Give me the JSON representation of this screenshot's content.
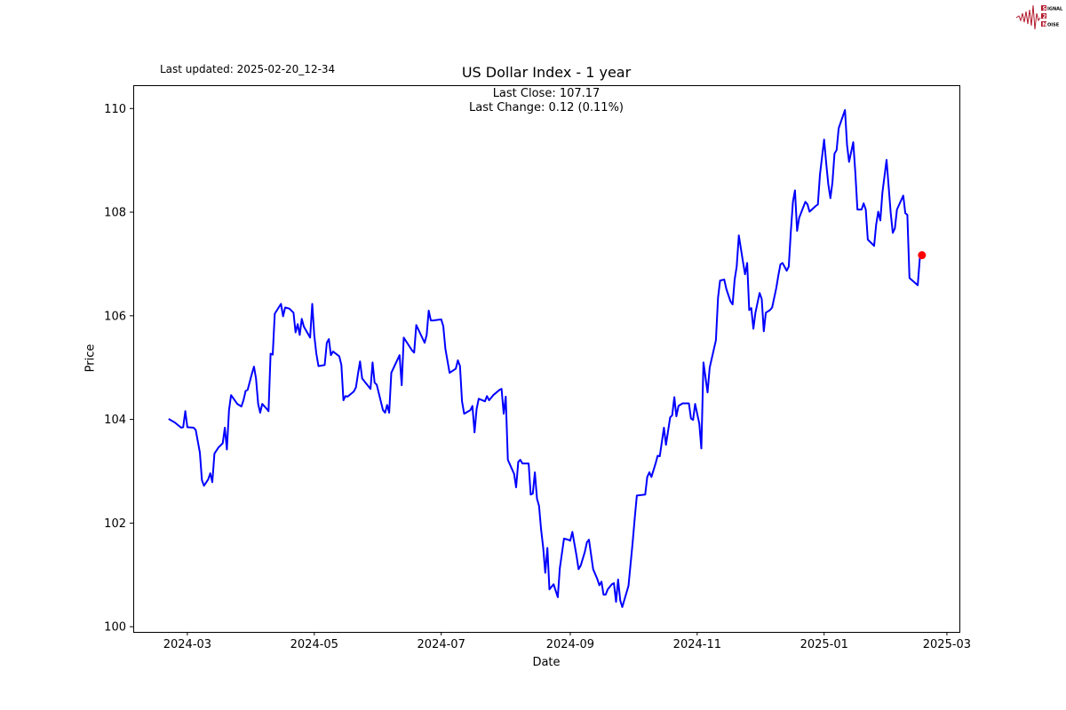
{
  "header": {
    "last_updated": "Last updated: 2025-02-20_12-34"
  },
  "logo": {
    "text": "SIGNAL 2 NOISE",
    "color": "#b2182b"
  },
  "chart_data": {
    "type": "line",
    "title": "US Dollar Index - 1 year",
    "annotation": {
      "last_close": "Last Close: 107.17",
      "last_change": "Last Change: 0.12 (0.11%)"
    },
    "xlabel": "Date",
    "ylabel": "Price",
    "xlim": [
      "2024-02-04",
      "2025-03-07"
    ],
    "ylim": [
      99.9,
      110.45
    ],
    "xticks": [
      "2024-03",
      "2024-05",
      "2024-07",
      "2024-09",
      "2024-11",
      "2025-01",
      "2025-03"
    ],
    "yticks": [
      100,
      102,
      104,
      106,
      108,
      110
    ],
    "grid": false,
    "line_color": "#0000ff",
    "marker_color": "#ff0000",
    "last_point": {
      "date": "2025-02-17",
      "value": 107.17
    },
    "series": [
      {
        "dates": [
          "2024-02-21",
          "2024-02-24",
          "2024-02-27",
          "2024-02-28",
          "2024-02-29",
          "2024-03-01",
          "2024-03-04",
          "2024-03-05",
          "2024-03-07",
          "2024-03-08",
          "2024-03-09",
          "2024-03-11",
          "2024-03-12",
          "2024-03-13",
          "2024-03-14",
          "2024-03-16",
          "2024-03-18",
          "2024-03-19",
          "2024-03-20",
          "2024-03-21",
          "2024-03-22",
          "2024-03-25",
          "2024-03-27",
          "2024-03-28",
          "2024-03-29",
          "2024-03-30",
          "2024-04-01",
          "2024-04-02",
          "2024-04-03",
          "2024-04-04",
          "2024-04-05",
          "2024-04-06",
          "2024-04-08",
          "2024-04-09",
          "2024-04-10",
          "2024-04-11",
          "2024-04-12",
          "2024-04-15",
          "2024-04-16",
          "2024-04-17",
          "2024-04-19",
          "2024-04-21",
          "2024-04-22",
          "2024-04-23",
          "2024-04-24",
          "2024-04-25",
          "2024-04-26",
          "2024-04-29",
          "2024-04-30",
          "2024-05-01",
          "2024-05-02",
          "2024-05-03",
          "2024-05-06",
          "2024-05-07",
          "2024-05-08",
          "2024-05-09",
          "2024-05-10",
          "2024-05-13",
          "2024-05-14",
          "2024-05-15",
          "2024-05-16",
          "2024-05-17",
          "2024-05-20",
          "2024-05-21",
          "2024-05-22",
          "2024-05-23",
          "2024-05-24",
          "2024-05-28",
          "2024-05-29",
          "2024-05-30",
          "2024-05-31",
          "2024-06-03",
          "2024-06-04",
          "2024-06-05",
          "2024-06-06",
          "2024-06-07",
          "2024-06-11",
          "2024-06-12",
          "2024-06-13",
          "2024-06-17",
          "2024-06-18",
          "2024-06-19",
          "2024-06-21",
          "2024-06-23",
          "2024-06-24",
          "2024-06-25",
          "2024-06-26",
          "2024-06-27",
          "2024-07-01",
          "2024-07-02",
          "2024-07-03",
          "2024-07-05",
          "2024-07-08",
          "2024-07-09",
          "2024-07-10",
          "2024-07-11",
          "2024-07-12",
          "2024-07-15",
          "2024-07-16",
          "2024-07-17",
          "2024-07-18",
          "2024-07-19",
          "2024-07-22",
          "2024-07-23",
          "2024-07-24",
          "2024-07-26",
          "2024-07-29",
          "2024-07-30",
          "2024-07-31",
          "2024-08-01",
          "2024-08-02",
          "2024-08-05",
          "2024-08-06",
          "2024-08-07",
          "2024-08-08",
          "2024-08-09",
          "2024-08-12",
          "2024-08-13",
          "2024-08-14",
          "2024-08-15",
          "2024-08-16",
          "2024-08-17",
          "2024-08-18",
          "2024-08-19",
          "2024-08-20",
          "2024-08-21",
          "2024-08-22",
          "2024-08-24",
          "2024-08-26",
          "2024-08-27",
          "2024-08-29",
          "2024-08-31",
          "2024-09-01",
          "2024-09-02",
          "2024-09-04",
          "2024-09-05",
          "2024-09-06",
          "2024-09-08",
          "2024-09-09",
          "2024-09-10",
          "2024-09-12",
          "2024-09-14",
          "2024-09-15",
          "2024-09-16",
          "2024-09-17",
          "2024-09-18",
          "2024-09-19",
          "2024-09-21",
          "2024-09-22",
          "2024-09-23",
          "2024-09-24",
          "2024-09-25",
          "2024-09-26",
          "2024-09-29",
          "2024-10-01",
          "2024-10-02",
          "2024-10-03",
          "2024-10-07",
          "2024-10-08",
          "2024-10-09",
          "2024-10-10",
          "2024-10-12",
          "2024-10-13",
          "2024-10-14",
          "2024-10-16",
          "2024-10-17",
          "2024-10-19",
          "2024-10-20",
          "2024-10-21",
          "2024-10-22",
          "2024-10-23",
          "2024-10-25",
          "2024-10-28",
          "2024-10-29",
          "2024-10-30",
          "2024-10-31",
          "2024-11-02",
          "2024-11-03",
          "2024-11-04",
          "2024-11-06",
          "2024-11-07",
          "2024-11-10",
          "2024-11-11",
          "2024-11-12",
          "2024-11-14",
          "2024-11-15",
          "2024-11-17",
          "2024-11-18",
          "2024-11-19",
          "2024-11-20",
          "2024-11-21",
          "2024-11-23",
          "2024-11-24",
          "2024-11-25",
          "2024-11-26",
          "2024-11-27",
          "2024-11-28",
          "2024-11-29",
          "2024-12-01",
          "2024-12-02",
          "2024-12-03",
          "2024-12-04",
          "2024-12-06",
          "2024-12-07",
          "2024-12-09",
          "2024-12-10",
          "2024-12-11",
          "2024-12-12",
          "2024-12-14",
          "2024-12-15",
          "2024-12-16",
          "2024-12-17",
          "2024-12-18",
          "2024-12-19",
          "2024-12-20",
          "2024-12-23",
          "2024-12-24",
          "2024-12-25",
          "2024-12-28",
          "2024-12-29",
          "2024-12-30",
          "2025-01-01",
          "2025-01-02",
          "2025-01-03",
          "2025-01-04",
          "2025-01-05",
          "2025-01-06",
          "2025-01-07",
          "2025-01-08",
          "2025-01-11",
          "2025-01-12",
          "2025-01-13",
          "2025-01-15",
          "2025-01-16",
          "2025-01-17",
          "2025-01-19",
          "2025-01-20",
          "2025-01-21",
          "2025-01-22",
          "2025-01-25",
          "2025-01-26",
          "2025-01-27",
          "2025-01-28",
          "2025-01-29",
          "2025-01-31",
          "2025-02-02",
          "2025-02-03",
          "2025-02-04",
          "2025-02-05",
          "2025-02-08",
          "2025-02-09",
          "2025-02-10",
          "2025-02-11",
          "2025-02-15",
          "2025-02-16",
          "2025-02-17"
        ],
        "values": [
          104.01,
          103.94,
          103.84,
          103.85,
          104.16,
          103.85,
          103.84,
          103.8,
          103.36,
          102.83,
          102.72,
          102.84,
          102.96,
          102.79,
          103.34,
          103.46,
          103.54,
          103.84,
          103.42,
          104.18,
          104.47,
          104.3,
          104.25,
          104.38,
          104.55,
          104.57,
          104.88,
          105.02,
          104.79,
          104.3,
          104.13,
          104.3,
          104.21,
          104.16,
          105.27,
          105.25,
          106.04,
          106.23,
          105.99,
          106.16,
          106.14,
          106.06,
          105.68,
          105.84,
          105.63,
          105.94,
          105.79,
          105.58,
          106.23,
          105.62,
          105.27,
          105.03,
          105.05,
          105.48,
          105.55,
          105.24,
          105.31,
          105.22,
          105.05,
          104.37,
          104.45,
          104.44,
          104.54,
          104.62,
          104.88,
          105.12,
          104.79,
          104.59,
          105.1,
          104.71,
          104.67,
          104.18,
          104.13,
          104.28,
          104.13,
          104.9,
          105.24,
          104.66,
          105.58,
          105.33,
          105.29,
          105.82,
          105.65,
          105.48,
          105.63,
          106.1,
          105.91,
          105.91,
          105.93,
          105.8,
          105.36,
          104.9,
          104.98,
          105.14,
          105.03,
          104.35,
          104.11,
          104.18,
          104.26,
          103.75,
          104.2,
          104.4,
          104.35,
          104.45,
          104.37,
          104.47,
          104.57,
          104.59,
          104.11,
          104.44,
          103.22,
          102.95,
          102.69,
          103.18,
          103.22,
          103.15,
          103.15,
          102.55,
          102.57,
          102.98,
          102.47,
          102.33,
          101.88,
          101.52,
          101.04,
          101.52,
          100.72,
          100.82,
          100.57,
          101.13,
          101.7,
          101.68,
          101.66,
          101.83,
          101.37,
          101.11,
          101.18,
          101.44,
          101.63,
          101.68,
          101.11,
          100.92,
          100.8,
          100.87,
          100.62,
          100.62,
          100.72,
          100.82,
          100.84,
          100.48,
          100.91,
          100.51,
          100.38,
          100.79,
          101.63,
          102.11,
          102.53,
          102.55,
          102.89,
          102.98,
          102.89,
          103.15,
          103.3,
          103.29,
          103.84,
          103.51,
          104.04,
          104.08,
          104.43,
          104.06,
          104.26,
          104.31,
          104.31,
          104.02,
          103.99,
          104.3,
          103.92,
          103.44,
          105.1,
          104.52,
          105.0,
          105.53,
          106.35,
          106.68,
          106.7,
          106.52,
          106.28,
          106.22,
          106.7,
          106.95,
          107.55,
          107.04,
          106.8,
          107.02,
          106.11,
          106.15,
          105.75,
          106.06,
          106.44,
          106.32,
          105.7,
          106.06,
          106.11,
          106.16,
          106.54,
          106.78,
          106.99,
          107.02,
          106.87,
          106.95,
          107.64,
          108.2,
          108.42,
          107.64,
          107.89,
          108.2,
          108.15,
          108.01,
          108.12,
          108.15,
          108.72,
          109.4,
          108.94,
          108.54,
          108.27,
          108.58,
          109.13,
          109.2,
          109.62,
          109.97,
          109.3,
          108.97,
          109.35,
          108.75,
          108.05,
          108.05,
          108.17,
          108.05,
          107.47,
          107.35,
          107.76,
          108.01,
          107.84,
          108.37,
          109.01,
          107.98,
          107.6,
          107.69,
          108.05,
          108.32,
          107.98,
          107.95,
          106.73,
          106.59,
          107.12,
          107.17
        ]
      }
    ]
  }
}
